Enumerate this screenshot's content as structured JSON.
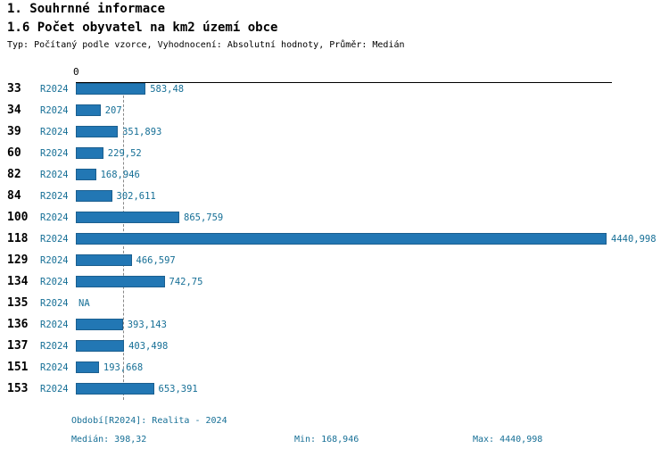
{
  "header": {
    "title1": "1. Souhrnné informace",
    "title2": "1.6 Počet obyvatel na km2 území obce",
    "subtitle": "Typ: Počítaný podle vzorce, Vyhodnocení: Absolutní hodnoty, Průměr: Medián"
  },
  "chart_data": {
    "type": "bar",
    "orientation": "horizontal",
    "title": "1.6 Počet obyvatel na km2 území obce",
    "series_label": "R2024",
    "categories": [
      "33",
      "34",
      "39",
      "60",
      "82",
      "84",
      "100",
      "118",
      "129",
      "134",
      "135",
      "136",
      "137",
      "151",
      "153"
    ],
    "values": [
      583.48,
      207,
      351.893,
      229.52,
      168.946,
      302.611,
      865.759,
      4440.998,
      466.597,
      742.75,
      null,
      393.143,
      403.498,
      193.668,
      653.391
    ],
    "value_labels": [
      "583,48",
      "207",
      "351,893",
      "229,52",
      "168,946",
      "302,611",
      "865,759",
      "4440,998",
      "466,597",
      "742,75",
      "NA",
      "393,143",
      "403,498",
      "193,668",
      "653,391"
    ],
    "xlim": [
      0,
      4440.998
    ],
    "origin_label": "0",
    "median": 398.32,
    "grid": "off",
    "bar_color": "#2277b4",
    "bar_border_color": "#1b5f8f",
    "label_color": "#166f96"
  },
  "footer": {
    "period": "Období[R2024]: Realita - 2024",
    "median": "Medián: 398,32",
    "min": "Min: 168,946",
    "max": "Max: 4440,998"
  }
}
